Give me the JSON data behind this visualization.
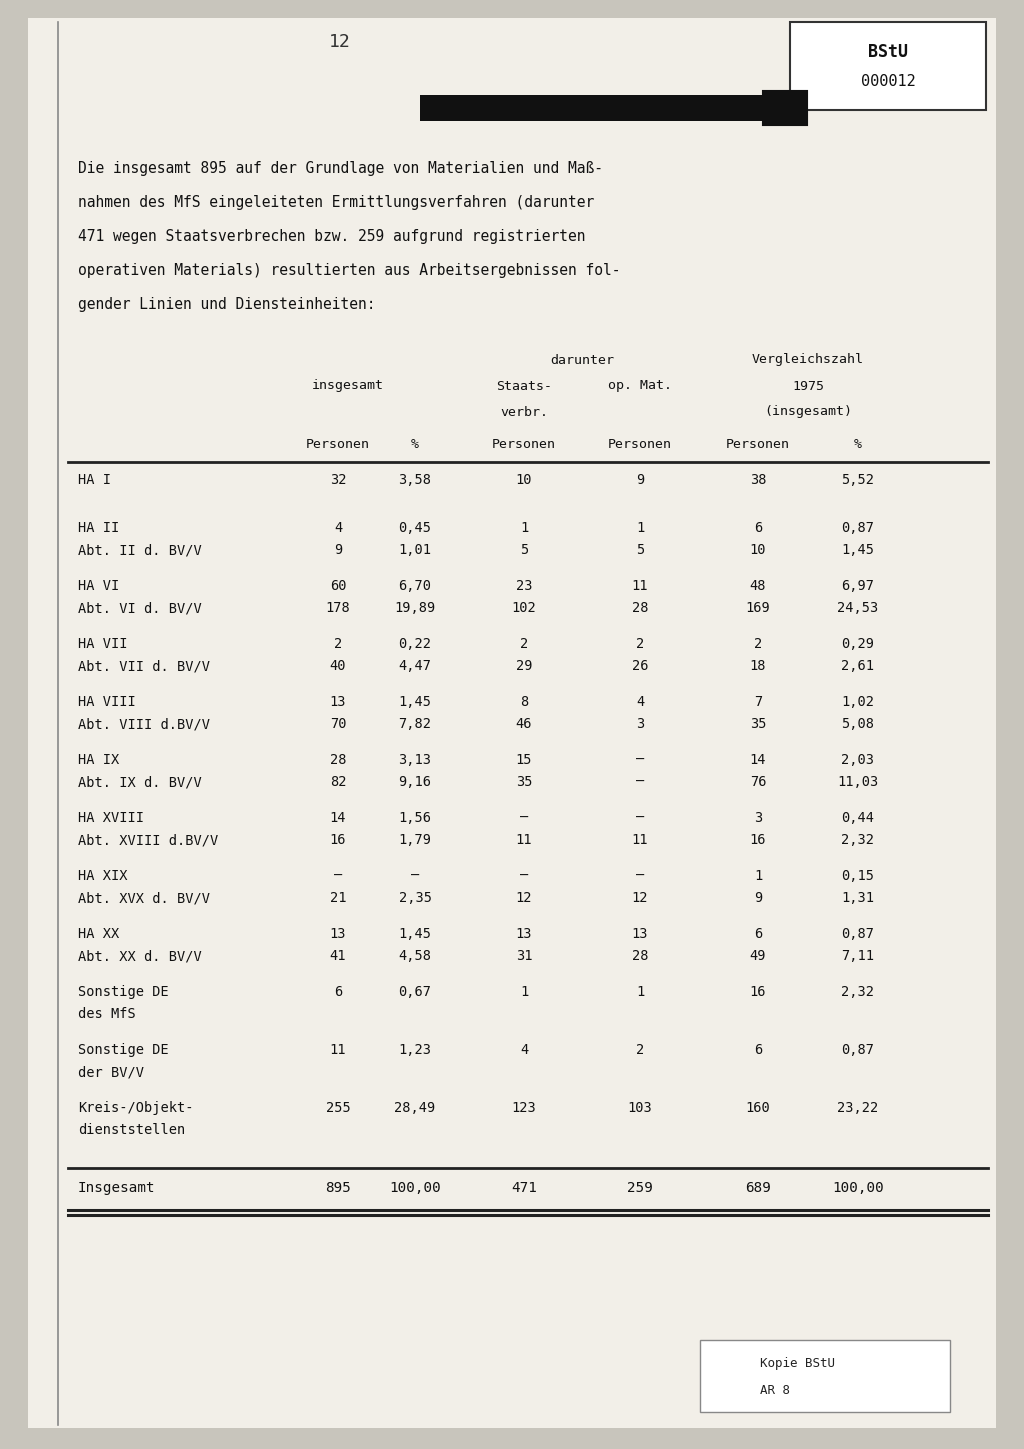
{
  "page_number": "12",
  "bstu_label": "BStU",
  "bstu_number": "000012",
  "intro_lines": [
    "Die insgesamt 895 auf der Grundlage von Materialien und Maß-",
    "nahmen des MfS eingeleiteten Ermittlungsverfahren (darunter",
    "471 wegen Staatsverbrechen bzw. 259 aufgrund registrierten",
    "operativen Materials) resultierten aus Arbeitsergebnissen fol-",
    "gender Linien und Diensteinheiten:"
  ],
  "rows": [
    {
      "label1": "HA I",
      "label2": "",
      "p1a": "32",
      "pct1a": "3,58",
      "p1b": "",
      "pct1b": "",
      "staat_a": "10",
      "staat_b": "",
      "op_a": "9",
      "op_b": "",
      "p2a": "38",
      "pct2a": "5,52",
      "p2b": "",
      "pct2b": ""
    },
    {
      "label1": "HA II",
      "label2": "Abt. II d. BV/V",
      "p1a": "4",
      "pct1a": "0,45",
      "p1b": "9",
      "pct1b": "1,01",
      "staat_a": "1",
      "staat_b": "5",
      "op_a": "1",
      "op_b": "5",
      "p2a": "6",
      "pct2a": "0,87",
      "p2b": "10",
      "pct2b": "1,45"
    },
    {
      "label1": "HA VI",
      "label2": "Abt. VI d. BV/V",
      "p1a": "60",
      "pct1a": "6,70",
      "p1b": "178",
      "pct1b": "19,89",
      "staat_a": "23",
      "staat_b": "102",
      "op_a": "11",
      "op_b": "28",
      "p2a": "48",
      "pct2a": "6,97",
      "p2b": "169",
      "pct2b": "24,53"
    },
    {
      "label1": "HA VII",
      "label2": "Abt. VII d. BV/V",
      "p1a": "2",
      "pct1a": "0,22",
      "p1b": "40",
      "pct1b": "4,47",
      "staat_a": "2",
      "staat_b": "29",
      "op_a": "2",
      "op_b": "26",
      "p2a": "2",
      "pct2a": "0,29",
      "p2b": "18",
      "pct2b": "2,61"
    },
    {
      "label1": "HA VIII",
      "label2": "Abt. VIII d.BV/V",
      "p1a": "13",
      "pct1a": "1,45",
      "p1b": "70",
      "pct1b": "7,82",
      "staat_a": "8",
      "staat_b": "46",
      "op_a": "4",
      "op_b": "3",
      "p2a": "7",
      "pct2a": "1,02",
      "p2b": "35",
      "pct2b": "5,08"
    },
    {
      "label1": "HA IX",
      "label2": "Abt. IX d. BV/V",
      "p1a": "28",
      "pct1a": "3,13",
      "p1b": "82",
      "pct1b": "9,16",
      "staat_a": "15",
      "staat_b": "35",
      "op_a": "–",
      "op_b": "–",
      "p2a": "14",
      "pct2a": "2,03",
      "p2b": "76",
      "pct2b": "11,03"
    },
    {
      "label1": "HA XVIII",
      "label2": "Abt. XVIII d.BV/V",
      "p1a": "14",
      "pct1a": "1,56",
      "p1b": "16",
      "pct1b": "1,79",
      "staat_a": "–",
      "staat_b": "11",
      "op_a": "–",
      "op_b": "11",
      "p2a": "3",
      "pct2a": "0,44",
      "p2b": "16",
      "pct2b": "2,32"
    },
    {
      "label1": "HA XIX",
      "label2": "Abt. XVX d. BV/V",
      "p1a": "–",
      "pct1a": "–",
      "p1b": "21",
      "pct1b": "2,35",
      "staat_a": "–",
      "staat_b": "12",
      "op_a": "–",
      "op_b": "12",
      "p2a": "1",
      "pct2a": "0,15",
      "p2b": "9",
      "pct2b": "1,31"
    },
    {
      "label1": "HA XX",
      "label2": "Abt. XX d. BV/V",
      "p1a": "13",
      "pct1a": "1,45",
      "p1b": "41",
      "pct1b": "4,58",
      "staat_a": "13",
      "staat_b": "31",
      "op_a": "13",
      "op_b": "28",
      "p2a": "6",
      "pct2a": "0,87",
      "p2b": "49",
      "pct2b": "7,11"
    },
    {
      "label1": "Sonstige DE",
      "label2": "des MfS",
      "p1a": "6",
      "pct1a": "0,67",
      "p1b": "",
      "pct1b": "",
      "staat_a": "1",
      "staat_b": "",
      "op_a": "1",
      "op_b": "",
      "p2a": "16",
      "pct2a": "2,32",
      "p2b": "",
      "pct2b": ""
    },
    {
      "label1": "Sonstige DE",
      "label2": "der BV/V",
      "p1a": "11",
      "pct1a": "1,23",
      "p1b": "",
      "pct1b": "",
      "staat_a": "4",
      "staat_b": "",
      "op_a": "2",
      "op_b": "",
      "p2a": "6",
      "pct2a": "0,87",
      "p2b": "",
      "pct2b": ""
    },
    {
      "label1": "Kreis-/Objekt-",
      "label2": "dienststellen",
      "p1a": "255",
      "pct1a": "28,49",
      "p1b": "",
      "pct1b": "",
      "staat_a": "123",
      "staat_b": "",
      "op_a": "103",
      "op_b": "",
      "p2a": "160",
      "pct2a": "23,22",
      "p2b": "",
      "pct2b": ""
    }
  ],
  "total": {
    "label": "Insgesamt",
    "p1": "895",
    "pct1": "100,00",
    "staat": "471",
    "op": "259",
    "p2": "689",
    "pct2": "100,00"
  },
  "page_bg": "#f2efe8",
  "outer_bg": "#c8c5bc"
}
